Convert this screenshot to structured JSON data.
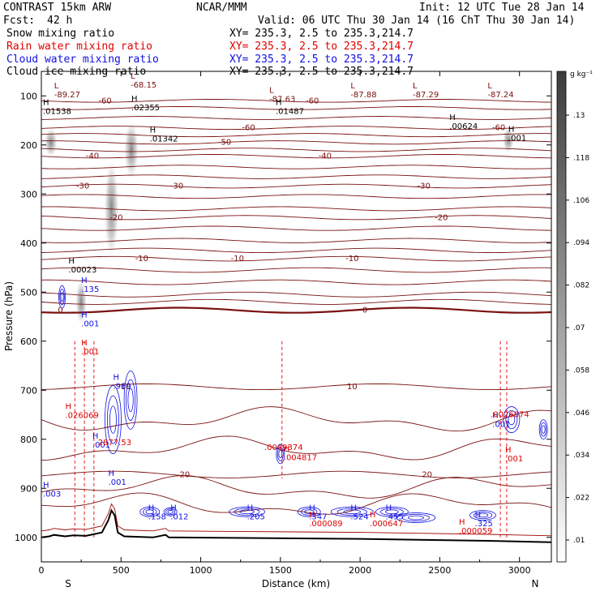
{
  "header": {
    "model": "CONTRAST 15km ARW",
    "center": "NCAR/MMM",
    "init": "Init: 12 UTC Tue 28 Jan 14",
    "fcst_label": "Fcst:",
    "fcst_value": "42 h",
    "valid": "Valid: 06 UTC Thu 30 Jan 14 (16 ChT Thu 30 Jan 14)",
    "fields": [
      {
        "name": "Snow mixing ratio",
        "xy": "XY= 235.3,  2.5 to 235.3,214.7",
        "color": "#000000"
      },
      {
        "name": "Rain water mixing ratio",
        "xy": "XY= 235.3,  2.5 to 235.3,214.7",
        "color": "#e00000"
      },
      {
        "name": "Cloud water mixing ratio",
        "xy": "XY= 235.3,  2.5 to 235.3,214.7",
        "color": "#1010e0"
      },
      {
        "name": "Cloud ice mixing ratio",
        "xy": "XY= 235.3,  2.5 to 235.3,214.7",
        "color": "#000000"
      }
    ]
  },
  "colors": {
    "temperature": "#7a1010",
    "rain": "#e00000",
    "cloud_water": "#1010e0",
    "terrain": "#000000",
    "marker": "#a00000"
  },
  "chart_data": {
    "type": "heatmap",
    "xlabel": "Distance (km)",
    "ylabel": "Pressure (hPa)",
    "xlim": [
      0,
      3200
    ],
    "ylim": [
      1050,
      50
    ],
    "x_ticks": [
      "0",
      "500",
      "1000",
      "1500",
      "2000",
      "2500",
      "3000"
    ],
    "y_ticks": [
      "100",
      "200",
      "300",
      "400",
      "500",
      "600",
      "700",
      "800",
      "900",
      "1000"
    ],
    "endpoints": {
      "left": "S",
      "right": "N"
    },
    "colorbar": {
      "unit": "g kg⁻¹",
      "ticks": [
        ".01",
        ".022",
        ".034",
        ".046",
        ".058",
        ".07",
        ".082",
        ".094",
        ".106",
        ".118",
        ".13"
      ]
    },
    "temperature_contours": [
      {
        "label": "-60",
        "p": 110
      },
      {
        "label": "-60",
        "p": 165
      },
      {
        "label": "-50",
        "p": 195
      },
      {
        "label": "-40",
        "p": 223
      },
      {
        "label": "-30",
        "p": 284
      },
      {
        "label": "-20",
        "p": 348
      },
      {
        "label": "-10",
        "p": 432
      },
      {
        "label": "0",
        "p": 537
      },
      {
        "label": "10",
        "p": 693
      },
      {
        "label": "20",
        "p": 872
      }
    ],
    "temperature_extrema": [
      {
        "type": "L",
        "value": "-68.15",
        "x": 560,
        "p": 78
      },
      {
        "type": "L",
        "value": "-89.27",
        "x": 80,
        "p": 98
      },
      {
        "type": "L",
        "value": "-87.63",
        "x": 1430,
        "p": 107
      },
      {
        "type": "L",
        "value": "-87.88",
        "x": 1940,
        "p": 98
      },
      {
        "type": "L",
        "value": "-87.29",
        "x": 2330,
        "p": 98
      },
      {
        "type": "L",
        "value": "-87.24",
        "x": 2800,
        "p": 98
      }
    ],
    "snow_extrema": [
      {
        "type": "H",
        "value": ".02355",
        "x": 565,
        "p": 124
      },
      {
        "type": "H",
        "value": ".01538",
        "x": 10,
        "p": 132
      },
      {
        "type": "H",
        "value": ".01487",
        "x": 1470,
        "p": 132
      },
      {
        "type": "H",
        "value": ".00624",
        "x": 2560,
        "p": 162
      },
      {
        "type": "H",
        "value": ".01342",
        "x": 680,
        "p": 188
      },
      {
        "type": "H",
        "value": ".00023",
        "x": 170,
        "p": 455
      },
      {
        "type": "H",
        "value": ".001",
        "x": 2930,
        "p": 186
      }
    ],
    "rain_extrema": [
      {
        "type": "H",
        "value": ".026069",
        "x": 150,
        "p": 752
      },
      {
        "type": "H",
        "value": ".001",
        "x": 250,
        "p": 622
      },
      {
        "type": "H",
        "value": ".004817",
        "x": 1520,
        "p": 838
      },
      {
        "type": "H",
        "value": ".000089",
        "x": 1680,
        "p": 972
      },
      {
        "type": "H",
        "value": ".000647",
        "x": 2060,
        "p": 972
      },
      {
        "type": "H",
        "value": ".000059",
        "x": 2620,
        "p": 987
      },
      {
        "type": "H",
        "value": ".001",
        "x": 2910,
        "p": 840
      }
    ],
    "cloud_water_extrema": [
      {
        "type": "H",
        "value": ".135",
        "x": 250,
        "p": 495
      },
      {
        "type": "H",
        "value": ".001",
        "x": 250,
        "p": 565
      },
      {
        "type": "H",
        "value": ".969",
        "x": 450,
        "p": 692
      },
      {
        "type": "H",
        "value": ".001",
        "x": 320,
        "p": 812
      },
      {
        "type": "H",
        "value": ".001",
        "x": 420,
        "p": 888
      },
      {
        "type": "H",
        "value": ".003",
        "x": 10,
        "p": 912
      },
      {
        "type": "H",
        "value": ".158",
        "x": 670,
        "p": 958
      },
      {
        "type": "H",
        "value": ".012",
        "x": 810,
        "p": 958
      },
      {
        "type": "H",
        "value": ".205",
        "x": 1290,
        "p": 958
      },
      {
        "type": "H",
        "value": ".347",
        "x": 1680,
        "p": 958
      },
      {
        "type": "H",
        "value": ".524",
        "x": 1940,
        "p": 958
      },
      {
        "type": "H",
        "value": ".455",
        "x": 2160,
        "p": 958
      },
      {
        "type": "H",
        "value": ".325",
        "x": 2720,
        "p": 972
      },
      {
        "type": "H",
        "value": ".001",
        "x": 2830,
        "p": 770
      }
    ],
    "overlap_labels": [
      {
        "value": "2877.53",
        "x": 460,
        "p": 812
      },
      {
        "value": ".0049374",
        "x": 1520,
        "p": 822
      },
      {
        "value": ".0026874",
        "x": 2940,
        "p": 755
      }
    ],
    "terrain": [
      [
        0,
        1000
      ],
      [
        50,
        998
      ],
      [
        80,
        995
      ],
      [
        150,
        998
      ],
      [
        200,
        996
      ],
      [
        280,
        997
      ],
      [
        380,
        990
      ],
      [
        420,
        965
      ],
      [
        440,
        945
      ],
      [
        460,
        955
      ],
      [
        480,
        990
      ],
      [
        520,
        998
      ],
      [
        700,
        1000
      ],
      [
        780,
        995
      ],
      [
        800,
        1000
      ],
      [
        1200,
        1001
      ],
      [
        2000,
        1003
      ],
      [
        2800,
        1007
      ],
      [
        3200,
        1010
      ]
    ],
    "marker_level_p": 1000
  }
}
